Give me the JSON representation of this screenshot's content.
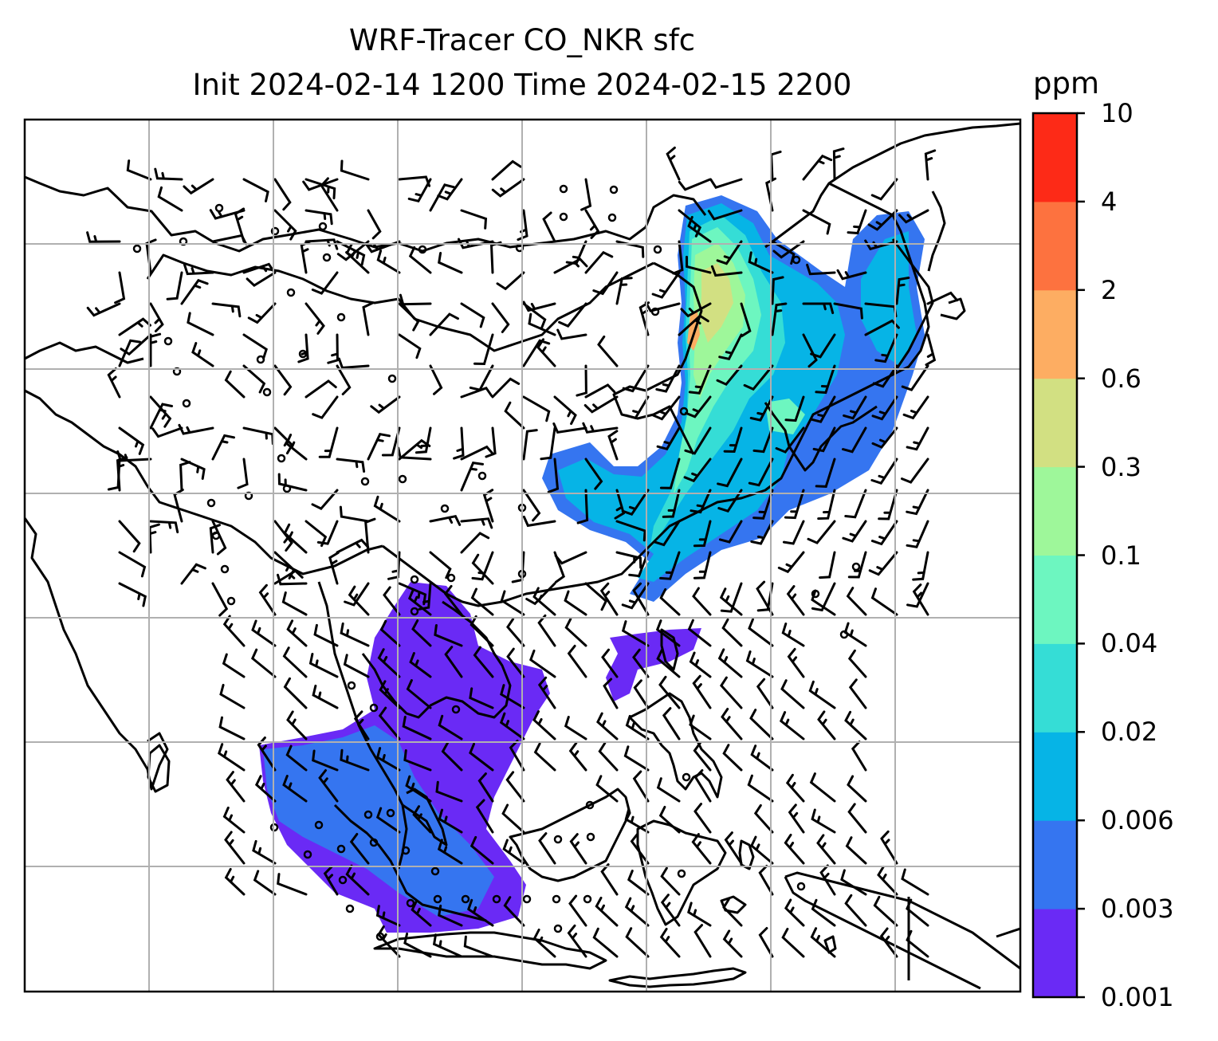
{
  "title_line1": "WRF-Tracer CO_NKR sfc",
  "title_line2": "Init 2024-02-14 1200 Time 2024-02-15 2200",
  "colorbar": {
    "unit": "ppm",
    "levels": [
      "0.001",
      "0.003",
      "0.006",
      "0.02",
      "0.04",
      "0.1",
      "0.3",
      "0.6",
      "2",
      "4",
      "10"
    ],
    "colors": [
      "#6a2af5",
      "#3575f0",
      "#06b4e6",
      "#35ddd6",
      "#6df6c0",
      "#9ef79a",
      "#d2e082",
      "#fdad62",
      "#fd723f",
      "#fd2a17"
    ]
  },
  "map": {
    "coastline_color": "#000000",
    "grid_color": "#b0b0b0",
    "wind_barb_color": "#000000",
    "plume_north_levels": [
      "0.006",
      "0.02",
      "0.04",
      "0.1",
      "0.3"
    ],
    "plume_south_levels": [
      "0.001",
      "0.003"
    ]
  }
}
